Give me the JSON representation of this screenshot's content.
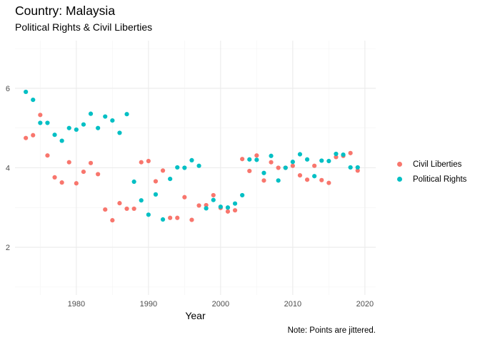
{
  "chart_data": {
    "type": "scatter",
    "title": "Country: Malaysia",
    "subtitle": "Political Rights & Civil Liberties",
    "xlabel": "Year",
    "ylabel": "",
    "caption": "Note: Points are jittered.",
    "xlim": [
      1971.5,
      2021.5
    ],
    "ylim": [
      0.8,
      7.2
    ],
    "x_ticks": [
      1980,
      1990,
      2000,
      2010,
      2020
    ],
    "y_ticks": [
      2,
      4,
      6
    ],
    "grid": true,
    "legend_position": "right",
    "series": [
      {
        "name": "Civil Liberties",
        "color": "#F8766D",
        "points": [
          [
            1973,
            4.75
          ],
          [
            1974,
            4.82
          ],
          [
            1975,
            5.33
          ],
          [
            1976,
            4.31
          ],
          [
            1977,
            3.76
          ],
          [
            1978,
            3.63
          ],
          [
            1979,
            4.14
          ],
          [
            1980,
            3.61
          ],
          [
            1981,
            3.9
          ],
          [
            1982,
            4.12
          ],
          [
            1983,
            3.84
          ],
          [
            1984,
            2.95
          ],
          [
            1985,
            2.68
          ],
          [
            1986,
            3.11
          ],
          [
            1987,
            2.97
          ],
          [
            1988,
            2.97
          ],
          [
            1989,
            4.14
          ],
          [
            1990,
            4.17
          ],
          [
            1991,
            3.66
          ],
          [
            1992,
            3.93
          ],
          [
            1993,
            2.74
          ],
          [
            1994,
            2.74
          ],
          [
            1995,
            3.26
          ],
          [
            1996,
            2.69
          ],
          [
            1997,
            3.05
          ],
          [
            1998,
            3.06
          ],
          [
            1999,
            3.31
          ],
          [
            2000,
            2.99
          ],
          [
            2001,
            2.9
          ],
          [
            2002,
            2.93
          ],
          [
            2003,
            4.22
          ],
          [
            2004,
            3.92
          ],
          [
            2005,
            4.31
          ],
          [
            2006,
            3.68
          ],
          [
            2007,
            4.14
          ],
          [
            2008,
            4.0
          ],
          [
            2009,
            4.0
          ],
          [
            2010,
            4.05
          ],
          [
            2011,
            3.81
          ],
          [
            2012,
            3.7
          ],
          [
            2013,
            4.05
          ],
          [
            2014,
            3.69
          ],
          [
            2015,
            3.62
          ],
          [
            2016,
            4.27
          ],
          [
            2017,
            4.3
          ],
          [
            2018,
            4.37
          ],
          [
            2019,
            3.93
          ]
        ]
      },
      {
        "name": "Political Rights",
        "color": "#00BFC4",
        "points": [
          [
            1973,
            5.91
          ],
          [
            1974,
            5.71
          ],
          [
            1975,
            5.13
          ],
          [
            1976,
            5.13
          ],
          [
            1977,
            4.83
          ],
          [
            1978,
            4.68
          ],
          [
            1979,
            5.0
          ],
          [
            1980,
            4.96
          ],
          [
            1981,
            5.09
          ],
          [
            1982,
            5.36
          ],
          [
            1983,
            5.0
          ],
          [
            1984,
            5.29
          ],
          [
            1985,
            5.19
          ],
          [
            1986,
            4.88
          ],
          [
            1987,
            5.35
          ],
          [
            1988,
            3.65
          ],
          [
            1989,
            3.18
          ],
          [
            1990,
            2.82
          ],
          [
            1991,
            3.33
          ],
          [
            1992,
            2.7
          ],
          [
            1993,
            3.72
          ],
          [
            1994,
            4.01
          ],
          [
            1995,
            4.0
          ],
          [
            1996,
            4.19
          ],
          [
            1997,
            4.05
          ],
          [
            1998,
            2.98
          ],
          [
            1999,
            3.19
          ],
          [
            2000,
            3.02
          ],
          [
            2001,
            3.0
          ],
          [
            2002,
            3.1
          ],
          [
            2003,
            3.31
          ],
          [
            2004,
            4.21
          ],
          [
            2005,
            4.2
          ],
          [
            2006,
            3.87
          ],
          [
            2007,
            4.3
          ],
          [
            2008,
            3.68
          ],
          [
            2009,
            4.0
          ],
          [
            2010,
            4.15
          ],
          [
            2011,
            4.34
          ],
          [
            2012,
            4.21
          ],
          [
            2013,
            3.79
          ],
          [
            2014,
            4.18
          ],
          [
            2015,
            4.17
          ],
          [
            2016,
            4.35
          ],
          [
            2017,
            4.33
          ],
          [
            2018,
            4.01
          ],
          [
            2019,
            4.01
          ]
        ]
      }
    ]
  }
}
